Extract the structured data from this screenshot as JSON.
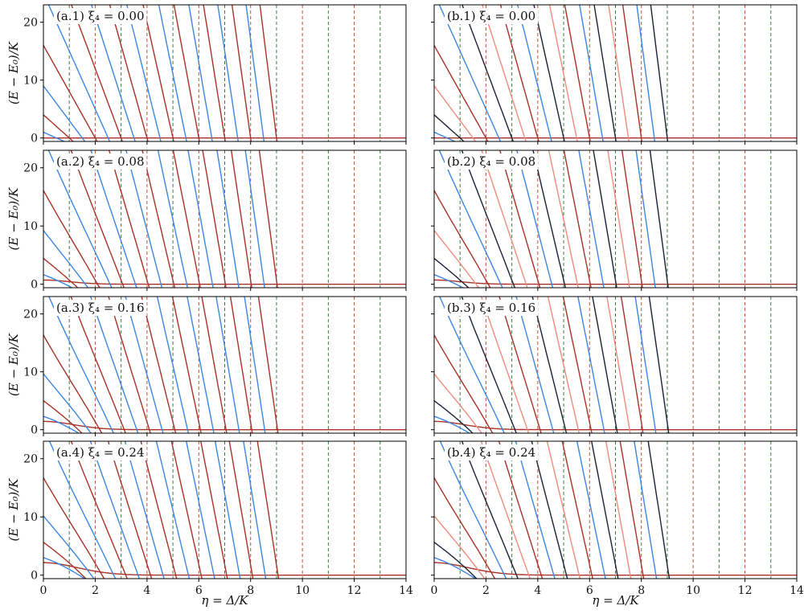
{
  "chart_data": {
    "type": "line",
    "xlabel": "η = Δ/K",
    "ylabel": "(E − E₀)/K",
    "xlim": [
      0,
      14
    ],
    "ylim": [
      -0.6,
      23
    ],
    "xticks": [
      0,
      2,
      4,
      6,
      8,
      10,
      12,
      14
    ],
    "yticks": [
      0,
      10,
      20
    ],
    "guide_lines": {
      "odd_green": [
        1,
        3,
        5,
        7,
        9,
        11,
        13
      ],
      "even_red": [
        2,
        4,
        6,
        8,
        10,
        12
      ],
      "colors": {
        "green": "#3d7a3d",
        "red": "#b5553a"
      }
    },
    "colors": {
      "blue": "#3b86e0",
      "darkred": "#a83226",
      "navy": "#1a2238",
      "salmon": "#f08a7c"
    },
    "panels": [
      {
        "label": "(a.1) ξ₄ = 0.00",
        "xi4": 0.0,
        "color_mode": "a"
      },
      {
        "label": "(b.1) ξ₄ = 0.00",
        "xi4": 0.0,
        "color_mode": "b"
      },
      {
        "label": "(a.2) ξ₄ = 0.08",
        "xi4": 0.08,
        "color_mode": "a"
      },
      {
        "label": "(b.2) ξ₄ = 0.08",
        "xi4": 0.08,
        "color_mode": "b"
      },
      {
        "label": "(a.3) ξ₄ = 0.16",
        "xi4": 0.16,
        "color_mode": "a"
      },
      {
        "label": "(b.3) ξ₄ = 0.16",
        "xi4": 0.16,
        "color_mode": "b"
      },
      {
        "label": "(a.4) ξ₄ = 0.24",
        "xi4": 0.24,
        "color_mode": "a"
      },
      {
        "label": "(b.4) ξ₄ = 0.24",
        "xi4": 0.24,
        "color_mode": "b"
      }
    ],
    "series_family": "(E_n − E_0)/K = (n − η)² − η², n = 0 … 18 (levels cross at integer η)"
  }
}
